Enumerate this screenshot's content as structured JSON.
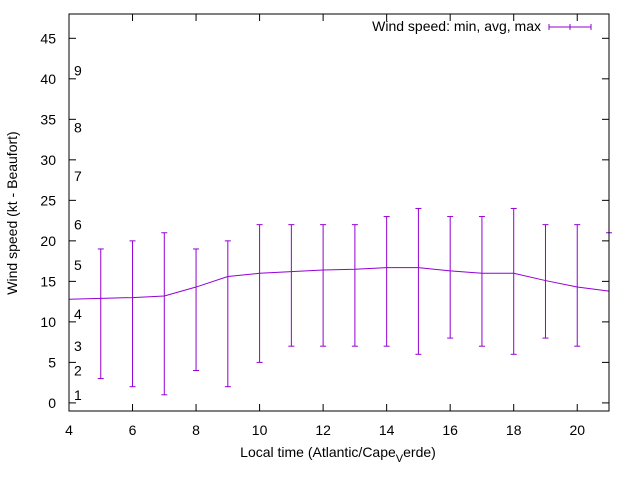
{
  "chart_data": {
    "type": "line",
    "title": "",
    "xlabel": "Local time (Atlantic/Cape",
    "xlabel_subscript": "V",
    "xlabel_suffix": "erde)",
    "ylabel": "Wind speed (kt - Beaufort)",
    "xlim": [
      4,
      21
    ],
    "ylim": [
      -1,
      48
    ],
    "x_ticks": [
      4,
      6,
      8,
      10,
      12,
      14,
      16,
      18,
      20
    ],
    "y_ticks": [
      0,
      5,
      10,
      15,
      20,
      25,
      30,
      35,
      40,
      45
    ],
    "beaufort_labels": [
      {
        "label": "1",
        "y": 1
      },
      {
        "label": "2",
        "y": 4
      },
      {
        "label": "3",
        "y": 7
      },
      {
        "label": "4",
        "y": 11
      },
      {
        "label": "5",
        "y": 17
      },
      {
        "label": "6",
        "y": 22
      },
      {
        "label": "7",
        "y": 28
      },
      {
        "label": "8",
        "y": 34
      },
      {
        "label": "9",
        "y": 41
      }
    ],
    "grid": false,
    "legend_position": "top-right",
    "series": [
      {
        "name": "Wind speed: min, avg, max",
        "color": "#9400d3",
        "x": [
          4,
          5,
          6,
          7,
          8,
          9,
          10,
          11,
          12,
          13,
          14,
          15,
          16,
          17,
          18,
          19,
          20,
          21
        ],
        "avg": [
          12.8,
          12.9,
          13.0,
          13.2,
          14.3,
          15.6,
          16.0,
          16.2,
          16.4,
          16.5,
          16.7,
          16.7,
          16.3,
          16.0,
          16.0,
          15.1,
          14.3,
          13.8
        ],
        "min": [
          null,
          3,
          2,
          1,
          4,
          2,
          5,
          7,
          7,
          7,
          7,
          6,
          8,
          7,
          6,
          8,
          7,
          null
        ],
        "max": [
          null,
          19,
          20,
          21,
          19,
          20,
          22,
          22,
          22,
          22,
          23,
          24,
          23,
          23,
          24,
          22,
          22,
          21
        ]
      }
    ]
  }
}
